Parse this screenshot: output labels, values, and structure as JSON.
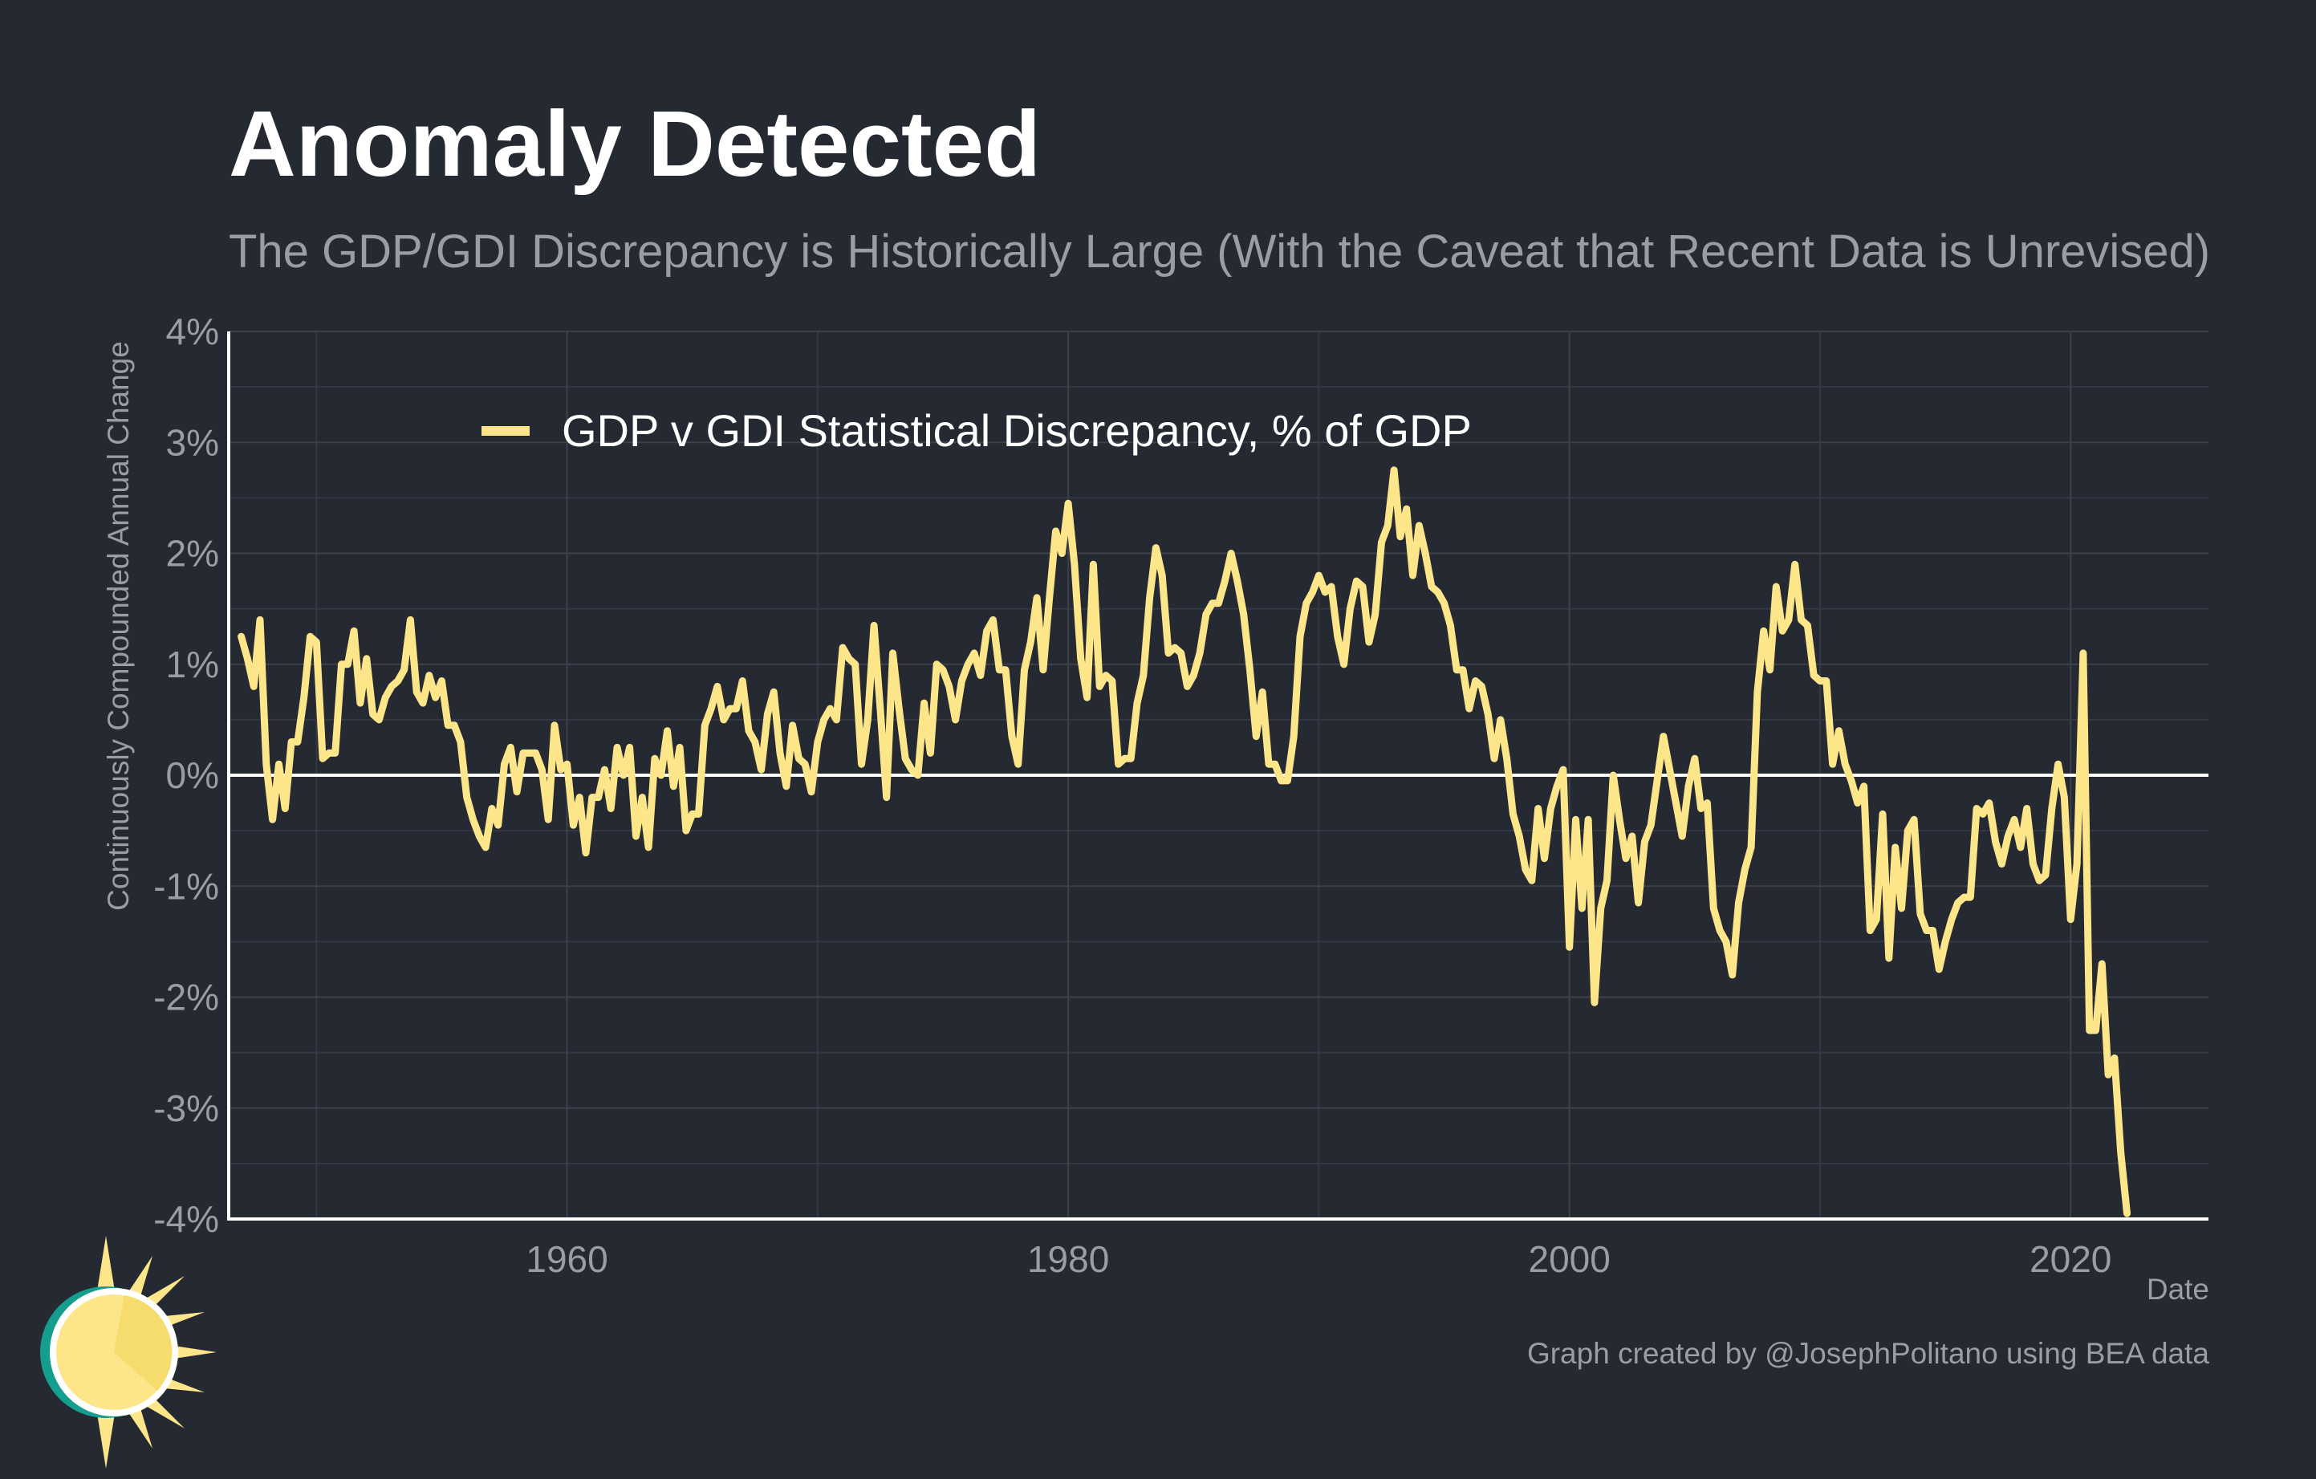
{
  "title": "Anomaly Detected",
  "subtitle": "The GDP/GDI Discrepancy is Historically Large (With the Caveat that Recent Data is Unrevised)",
  "credit": "Graph created by @JosephPolitano using BEA data",
  "colors": {
    "background": "#252932",
    "line": "#fde68a",
    "zero_line": "#ffffff",
    "grid": "#3d414a",
    "text_muted": "#9a9da4"
  },
  "chart_data": {
    "type": "line",
    "title": "Anomaly Detected",
    "subtitle": "The GDP/GDI Discrepancy is Historically Large (With the Caveat that Recent Data is Unrevised)",
    "xlabel": "Date",
    "ylabel": "Continuously Compounded Annual Change",
    "xlim": [
      1946.5,
      2025.5
    ],
    "ylim": [
      -4,
      4
    ],
    "x_ticks": [
      1960,
      1980,
      2000,
      2020
    ],
    "x_tick_labels": [
      "1960",
      "1980",
      "2000",
      "2020"
    ],
    "y_ticks": [
      -4,
      -3,
      -2,
      -1,
      0,
      1,
      2,
      3,
      4
    ],
    "y_tick_labels": [
      "-4%",
      "-3%",
      "-2%",
      "-1%",
      "0%",
      "1%",
      "2%",
      "3%",
      "4%"
    ],
    "grid": true,
    "legend_position": "top-left",
    "reference_line_y": 0,
    "series": [
      {
        "name": "GDP v GDI Statistical Discrepancy, % of GDP",
        "color": "#fde68a",
        "x": [
          1947.0,
          1947.25,
          1947.5,
          1947.75,
          1948.0,
          1948.25,
          1948.5,
          1948.75,
          1949.0,
          1949.25,
          1949.5,
          1949.75,
          1950.0,
          1950.25,
          1950.5,
          1950.75,
          1951.0,
          1951.25,
          1951.5,
          1951.75,
          1952.0,
          1952.25,
          1952.5,
          1952.75,
          1953.0,
          1953.25,
          1953.5,
          1953.75,
          1954.0,
          1954.25,
          1954.5,
          1954.75,
          1955.0,
          1955.25,
          1955.5,
          1955.75,
          1956.0,
          1956.25,
          1956.5,
          1956.75,
          1957.0,
          1957.25,
          1957.5,
          1957.75,
          1958.0,
          1958.25,
          1958.5,
          1958.75,
          1959.0,
          1959.25,
          1959.5,
          1959.75,
          1960.0,
          1960.25,
          1960.5,
          1960.75,
          1961.0,
          1961.25,
          1961.5,
          1961.75,
          1962.0,
          1962.25,
          1962.5,
          1962.75,
          1963.0,
          1963.25,
          1963.5,
          1963.75,
          1964.0,
          1964.25,
          1964.5,
          1964.75,
          1965.0,
          1965.25,
          1965.5,
          1965.75,
          1966.0,
          1966.25,
          1966.5,
          1966.75,
          1967.0,
          1967.25,
          1967.5,
          1967.75,
          1968.0,
          1968.25,
          1968.5,
          1968.75,
          1969.0,
          1969.25,
          1969.5,
          1969.75,
          1970.0,
          1970.25,
          1970.5,
          1970.75,
          1971.0,
          1971.25,
          1971.5,
          1971.75,
          1972.0,
          1972.25,
          1972.5,
          1972.75,
          1973.0,
          1973.25,
          1973.5,
          1973.75,
          1974.0,
          1974.25,
          1974.5,
          1974.75,
          1975.0,
          1975.25,
          1975.5,
          1975.75,
          1976.0,
          1976.25,
          1976.5,
          1976.75,
          1977.0,
          1977.25,
          1977.5,
          1977.75,
          1978.0,
          1978.25,
          1978.5,
          1978.75,
          1979.0,
          1979.25,
          1979.5,
          1979.75,
          1980.0,
          1980.25,
          1980.5,
          1980.75,
          1981.0,
          1981.25,
          1981.5,
          1981.75,
          1982.0,
          1982.25,
          1982.5,
          1982.75,
          1983.0,
          1983.25,
          1983.5,
          1983.75,
          1984.0,
          1984.25,
          1984.5,
          1984.75,
          1985.0,
          1985.25,
          1985.5,
          1985.75,
          1986.0,
          1986.25,
          1986.5,
          1986.75,
          1987.0,
          1987.25,
          1987.5,
          1987.75,
          1988.0,
          1988.25,
          1988.5,
          1988.75,
          1989.0,
          1989.25,
          1989.5,
          1989.75,
          1990.0,
          1990.25,
          1990.5,
          1990.75,
          1991.0,
          1991.25,
          1991.5,
          1991.75,
          1992.0,
          1992.25,
          1992.5,
          1992.75,
          1993.0,
          1993.25,
          1993.5,
          1993.75,
          1994.0,
          1994.25,
          1994.5,
          1994.75,
          1995.0,
          1995.25,
          1995.5,
          1995.75,
          1996.0,
          1996.25,
          1996.5,
          1996.75,
          1997.0,
          1997.25,
          1997.5,
          1997.75,
          1998.0,
          1998.25,
          1998.5,
          1998.75,
          1999.0,
          1999.25,
          1999.5,
          1999.75,
          2000.0,
          2000.25,
          2000.5,
          2000.75,
          2001.0,
          2001.25,
          2001.5,
          2001.75,
          2002.0,
          2002.25,
          2002.5,
          2002.75,
          2003.0,
          2003.25,
          2003.5,
          2003.75,
          2004.0,
          2004.25,
          2004.5,
          2004.75,
          2005.0,
          2005.25,
          2005.5,
          2005.75,
          2006.0,
          2006.25,
          2006.5,
          2006.75,
          2007.0,
          2007.25,
          2007.5,
          2007.75,
          2008.0,
          2008.25,
          2008.5,
          2008.75,
          2009.0,
          2009.25,
          2009.5,
          2009.75,
          2010.0,
          2010.25,
          2010.5,
          2010.75,
          2011.0,
          2011.25,
          2011.5,
          2011.75,
          2012.0,
          2012.25,
          2012.5,
          2012.75,
          2013.0,
          2013.25,
          2013.5,
          2013.75,
          2014.0,
          2014.25,
          2014.5,
          2014.75,
          2015.0,
          2015.25,
          2015.5,
          2015.75,
          2016.0,
          2016.25,
          2016.5,
          2016.75,
          2017.0,
          2017.25,
          2017.5,
          2017.75,
          2018.0,
          2018.25,
          2018.5,
          2018.75,
          2019.0,
          2019.25,
          2019.5,
          2019.75,
          2020.0,
          2020.25,
          2020.5,
          2020.75,
          2021.0,
          2021.25,
          2021.5,
          2021.75,
          2022.0,
          2022.25
        ],
        "values": [
          1.25,
          1.05,
          0.8,
          1.4,
          0.1,
          -0.4,
          0.1,
          -0.3,
          0.3,
          0.3,
          0.7,
          1.25,
          1.2,
          0.15,
          0.2,
          0.2,
          1.0,
          1.0,
          1.3,
          0.65,
          1.05,
          0.55,
          0.5,
          0.7,
          0.8,
          0.85,
          0.95,
          1.4,
          0.75,
          0.65,
          0.9,
          0.7,
          0.85,
          0.45,
          0.45,
          0.3,
          -0.2,
          -0.4,
          -0.55,
          -0.65,
          -0.3,
          -0.45,
          0.1,
          0.25,
          -0.15,
          0.2,
          0.2,
          0.2,
          0.05,
          -0.4,
          0.45,
          0.05,
          0.1,
          -0.45,
          -0.2,
          -0.7,
          -0.2,
          -0.2,
          0.05,
          -0.3,
          0.25,
          0.0,
          0.25,
          -0.55,
          -0.2,
          -0.65,
          0.15,
          0.0,
          0.4,
          -0.1,
          0.25,
          -0.5,
          -0.35,
          -0.35,
          0.45,
          0.6,
          0.8,
          0.5,
          0.6,
          0.6,
          0.85,
          0.4,
          0.3,
          0.05,
          0.55,
          0.75,
          0.2,
          -0.1,
          0.45,
          0.15,
          0.1,
          -0.15,
          0.3,
          0.5,
          0.6,
          0.5,
          1.15,
          1.05,
          1.0,
          0.1,
          0.5,
          1.35,
          0.6,
          -0.2,
          1.1,
          0.6,
          0.15,
          0.05,
          0.0,
          0.65,
          0.2,
          1.0,
          0.95,
          0.8,
          0.5,
          0.85,
          1.0,
          1.1,
          0.9,
          1.3,
          1.4,
          0.95,
          0.95,
          0.35,
          0.1,
          0.95,
          1.2,
          1.6,
          0.95,
          1.6,
          2.2,
          2.0,
          2.45,
          1.9,
          1.05,
          0.7,
          1.9,
          0.8,
          0.9,
          0.85,
          0.1,
          0.15,
          0.15,
          0.65,
          0.9,
          1.6,
          2.05,
          1.8,
          1.1,
          1.15,
          1.1,
          0.8,
          0.9,
          1.1,
          1.45,
          1.55,
          1.55,
          1.75,
          2.0,
          1.75,
          1.45,
          0.95,
          0.35,
          0.75,
          0.1,
          0.1,
          -0.05,
          -0.05,
          0.35,
          1.25,
          1.55,
          1.65,
          1.8,
          1.65,
          1.7,
          1.25,
          1.0,
          1.5,
          1.75,
          1.7,
          1.2,
          1.45,
          2.1,
          2.25,
          2.75,
          2.15,
          2.4,
          1.8,
          2.25,
          2.0,
          1.7,
          1.65,
          1.55,
          1.35,
          0.95,
          0.95,
          0.6,
          0.85,
          0.8,
          0.55,
          0.15,
          0.5,
          0.15,
          -0.35,
          -0.55,
          -0.85,
          -0.95,
          -0.3,
          -0.75,
          -0.3,
          -0.1,
          0.05,
          -1.55,
          -0.4,
          -1.2,
          -0.4,
          -2.05,
          -1.2,
          -0.95,
          0.0,
          -0.4,
          -0.75,
          -0.55,
          -1.15,
          -0.6,
          -0.45,
          -0.05,
          0.35,
          0.05,
          -0.25,
          -0.55,
          -0.1,
          0.15,
          -0.3,
          -0.25,
          -1.2,
          -1.4,
          -1.5,
          -1.8,
          -1.15,
          -0.85,
          -0.65,
          0.75,
          1.3,
          0.95,
          1.7,
          1.3,
          1.4,
          1.9,
          1.4,
          1.35,
          0.9,
          0.85,
          0.85,
          0.1,
          0.4,
          0.1,
          -0.05,
          -0.25,
          -0.1,
          -1.4,
          -1.3,
          -0.35,
          -1.65,
          -0.65,
          -1.2,
          -0.5,
          -0.4,
          -1.25,
          -1.4,
          -1.4,
          -1.75,
          -1.5,
          -1.3,
          -1.15,
          -1.1,
          -1.1,
          -0.3,
          -0.35,
          -0.25,
          -0.6,
          -0.8,
          -0.55,
          -0.4,
          -0.65,
          -0.3,
          -0.8,
          -0.95,
          -0.9,
          -0.3,
          0.1,
          -0.2,
          -1.3,
          -0.8,
          1.1,
          -2.3,
          -2.3,
          -1.7,
          -2.7,
          -2.55,
          -3.4,
          -3.95
        ]
      }
    ]
  }
}
